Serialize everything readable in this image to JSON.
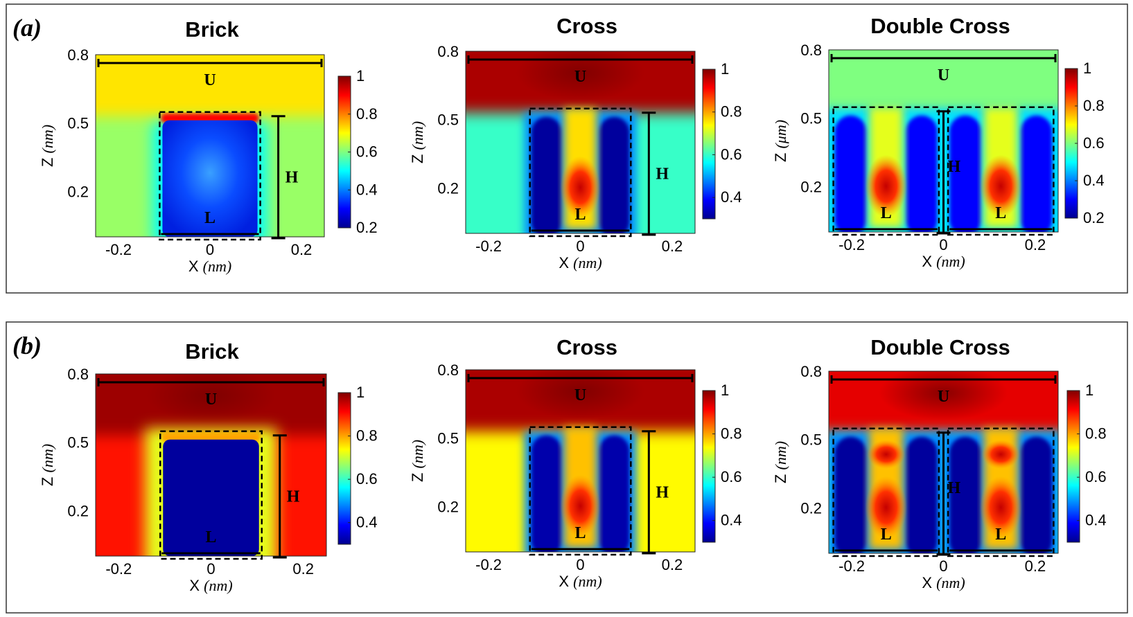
{
  "figure": {
    "rows": [
      {
        "label": "(a)",
        "panels": [
          {
            "title": "Brick",
            "xlabel_main": "X",
            "xlabel_unit": "(nm)",
            "ylabel_main": "Z",
            "ylabel_unit": "(nm)",
            "xticks": [
              "-0.2",
              "0",
              "0.2"
            ],
            "yticks": [
              "0.8",
              "0.5",
              "0.2"
            ],
            "cbar_ticks": [
              "1",
              "0.8",
              "0.6",
              "0.4",
              "0.2"
            ],
            "dims": {
              "u": "U",
              "h": "H",
              "l": "L"
            }
          },
          {
            "title": "Cross",
            "xlabel_main": "X",
            "xlabel_unit": "(nm)",
            "ylabel_main": "Z",
            "ylabel_unit": "(nm)",
            "xticks": [
              "-0.2",
              "0",
              "0.2"
            ],
            "yticks": [
              "0.8",
              "0.5",
              "0.2"
            ],
            "cbar_ticks": [
              "1",
              "0.8",
              "0.6",
              "0.4"
            ],
            "dims": {
              "u": "U",
              "h": "H",
              "l": "L"
            }
          },
          {
            "title": "Double Cross",
            "xlabel_main": "X",
            "xlabel_unit": "(nm)",
            "ylabel_main": "Z",
            "ylabel_unit": "(μm)",
            "xticks": [
              "-0.2",
              "0",
              "0.2"
            ],
            "yticks": [
              "0.8",
              "0.5",
              "0.2"
            ],
            "cbar_ticks": [
              "1",
              "0.8",
              "0.6",
              "0.4",
              "0.2"
            ],
            "dims": {
              "u": "U",
              "h": "H",
              "l": "L",
              "l2": "L"
            }
          }
        ]
      },
      {
        "label": "(b)",
        "panels": [
          {
            "title": "Brick",
            "xlabel_main": "X",
            "xlabel_unit": "(nm)",
            "ylabel_main": "Z",
            "ylabel_unit": "(nm)",
            "xticks": [
              "-0.2",
              "0",
              "0.2"
            ],
            "yticks": [
              "0.8",
              "0.5",
              "0.2"
            ],
            "cbar_ticks": [
              "1",
              "0.8",
              "0.6",
              "0.4"
            ],
            "dims": {
              "u": "U",
              "h": "H",
              "l": "L"
            }
          },
          {
            "title": "Cross",
            "xlabel_main": "X",
            "xlabel_unit": "(nm)",
            "ylabel_main": "Z",
            "ylabel_unit": "(nm)",
            "xticks": [
              "-0.2",
              "0",
              "0.2"
            ],
            "yticks": [
              "0.8",
              "0.5",
              "0.2"
            ],
            "cbar_ticks": [
              "1",
              "0.8",
              "0.6",
              "0.4"
            ],
            "dims": {
              "u": "U",
              "h": "H",
              "l": "L"
            }
          },
          {
            "title": "Double Cross",
            "xlabel_main": "X",
            "xlabel_unit": "(nm)",
            "ylabel_main": "Z",
            "ylabel_unit": "(nm)",
            "xticks": [
              "-0.2",
              "0",
              "0.2"
            ],
            "yticks": [
              "0.8",
              "0.5",
              "0.2"
            ],
            "cbar_ticks": [
              "1",
              "0.8",
              "0.6",
              "0.4"
            ],
            "dims": {
              "u": "U",
              "h": "H",
              "l": "L",
              "l2": "L"
            }
          }
        ]
      }
    ]
  },
  "chart_data": [
    {
      "type": "heatmap",
      "title": "Brick",
      "panel": "(a)",
      "xlabel": "X (nm)",
      "ylabel": "Z (nm)",
      "xlim": [
        -0.25,
        0.25
      ],
      "ylim": [
        0.0,
        0.8
      ],
      "clim": [
        0.2,
        1.0
      ],
      "colormap": "jet",
      "field": {
        "background": 0.62,
        "top_region": 0.72,
        "structure_interior": 0.3,
        "structure_top_edge": 0.9
      },
      "structure": {
        "shape": "brick",
        "x_range": [
          -0.11,
          0.11
        ],
        "z_range": [
          0.0,
          0.53
        ]
      }
    },
    {
      "type": "heatmap",
      "title": "Cross",
      "panel": "(a)",
      "xlabel": "X (nm)",
      "ylabel": "Z (nm)",
      "xlim": [
        -0.25,
        0.25
      ],
      "ylim": [
        0.0,
        0.8
      ],
      "clim": [
        0.3,
        1.0
      ],
      "colormap": "jet",
      "field": {
        "background": 0.6,
        "top_region": 0.97,
        "structure_sides": 0.32,
        "center_channel": 0.88
      },
      "structure": {
        "shape": "cross",
        "x_range": [
          -0.11,
          0.11
        ],
        "z_range": [
          0.0,
          0.53
        ]
      }
    },
    {
      "type": "heatmap",
      "title": "Double Cross",
      "panel": "(a)",
      "xlabel": "X (nm)",
      "ylabel": "Z (μm)",
      "xlim": [
        -0.25,
        0.25
      ],
      "ylim": [
        0.0,
        0.8
      ],
      "clim": [
        0.2,
        1.0
      ],
      "colormap": "jet",
      "field": {
        "background": 0.45,
        "top_region": 0.6,
        "structure_sides": 0.3,
        "center_channel": 0.8
      },
      "structure": {
        "shape": "double-cross",
        "x_range": [
          -0.24,
          0.24
        ],
        "z_range": [
          0.0,
          0.53
        ]
      }
    },
    {
      "type": "heatmap",
      "title": "Brick",
      "panel": "(b)",
      "xlabel": "X (nm)",
      "ylabel": "Z (nm)",
      "xlim": [
        -0.25,
        0.25
      ],
      "ylim": [
        0.0,
        0.8
      ],
      "clim": [
        0.3,
        1.0
      ],
      "colormap": "jet",
      "field": {
        "background": 0.9,
        "top_region": 0.98,
        "structure_interior": 0.32,
        "structure_top_edge": 0.8
      },
      "structure": {
        "shape": "brick",
        "x_range": [
          -0.11,
          0.11
        ],
        "z_range": [
          0.0,
          0.53
        ]
      }
    },
    {
      "type": "heatmap",
      "title": "Cross",
      "panel": "(b)",
      "xlabel": "X (nm)",
      "ylabel": "Z (nm)",
      "xlim": [
        -0.25,
        0.25
      ],
      "ylim": [
        0.0,
        0.8
      ],
      "clim": [
        0.3,
        1.0
      ],
      "colormap": "jet",
      "field": {
        "background": 0.74,
        "top_region": 0.97,
        "structure_sides": 0.33,
        "center_channel": 0.9
      },
      "structure": {
        "shape": "cross",
        "x_range": [
          -0.11,
          0.11
        ],
        "z_range": [
          0.0,
          0.53
        ]
      }
    },
    {
      "type": "heatmap",
      "title": "Double Cross",
      "panel": "(b)",
      "xlabel": "X (nm)",
      "ylabel": "Z (nm)",
      "xlim": [
        -0.25,
        0.25
      ],
      "ylim": [
        0.0,
        0.8
      ],
      "clim": [
        0.3,
        1.0
      ],
      "colormap": "jet",
      "field": {
        "background": 0.6,
        "top_region": 0.93,
        "structure_sides": 0.32,
        "center_channel": 0.9
      },
      "structure": {
        "shape": "double-cross",
        "x_range": [
          -0.24,
          0.24
        ],
        "z_range": [
          0.0,
          0.53
        ]
      }
    }
  ]
}
